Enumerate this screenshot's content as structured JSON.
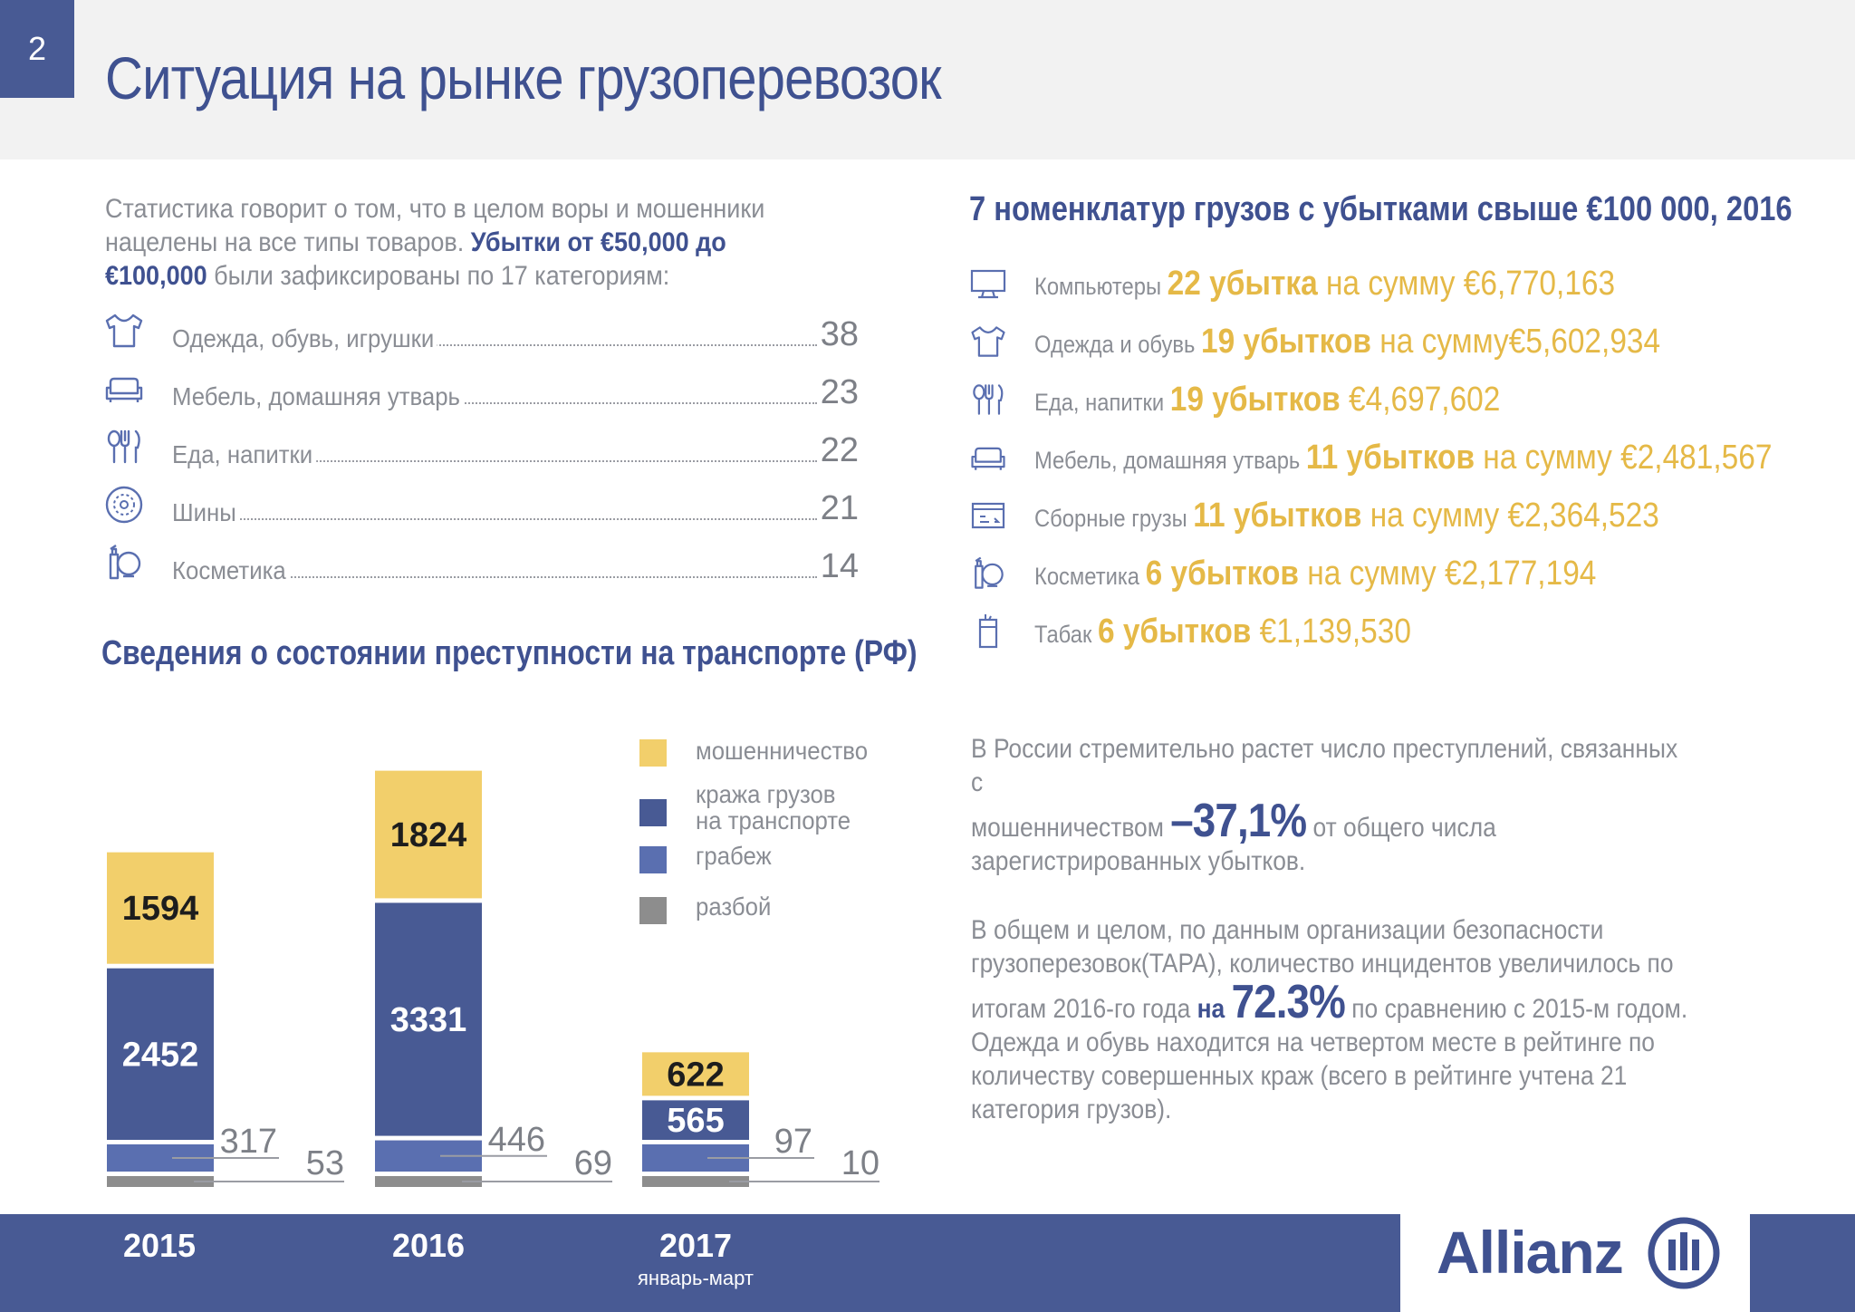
{
  "header": {
    "page_number": "2",
    "title": "Ситуация на рынке грузоперевозок"
  },
  "intro": {
    "text_plain": "Статистика говорит о том, что в целом воры и мошенники нацелены на все типы товаров. ",
    "text_bold": "Убытки от €50,000 до €100,000",
    "text_end": " были зафиксированы по 17 категориям:"
  },
  "categories": [
    {
      "icon": "tshirt-icon",
      "label": "Одежда, обувь, игрушки",
      "value": "38"
    },
    {
      "icon": "sofa-icon",
      "label": "Мебель, домашняя утварь",
      "value": "23"
    },
    {
      "icon": "cutlery-icon",
      "label": "Еда, напитки",
      "value": "22"
    },
    {
      "icon": "tire-icon",
      "label": "Шины",
      "value": "21"
    },
    {
      "icon": "cosmetics-icon",
      "label": "Косметика",
      "value": "14"
    }
  ],
  "crime_section": {
    "title": "Сведения о состоянии преступности на транспорте (РФ)"
  },
  "colors": {
    "fraud": "#f2cf6b",
    "theft": "#485a94",
    "robbery": "#5a6fb0",
    "assault": "#8d8d8d",
    "brand": "#3f5190",
    "gold": "#e5b947"
  },
  "chart_data": {
    "type": "bar",
    "stacked": true,
    "categories": [
      "2015",
      "2016",
      "2017"
    ],
    "category_sublabels": [
      "",
      "",
      "январь-март"
    ],
    "series": [
      {
        "name": "разбой",
        "values": [
          53,
          69,
          10
        ]
      },
      {
        "name": "грабеж",
        "values": [
          317,
          446,
          97
        ]
      },
      {
        "name": "кража грузов на транспорте",
        "values": [
          2452,
          3331,
          565
        ]
      },
      {
        "name": "мошенничество",
        "values": [
          1594,
          1824,
          622
        ]
      }
    ],
    "legend_position": "right",
    "legend": [
      {
        "name": "мошенничество"
      },
      {
        "name": "кража грузов\nна транспорте"
      },
      {
        "name": "грабеж"
      },
      {
        "name": "разбой"
      }
    ]
  },
  "right": {
    "title": "7 номенклатур грузов с убытками свыше €100 000, 2016",
    "items": [
      {
        "icon": "monitor-icon",
        "category": "Компьютеры ",
        "count": "22 убытка",
        "sum": " на сумму €6,770,163"
      },
      {
        "icon": "tshirt-icon",
        "category": "Одежда и обувь ",
        "count": "19 убытков",
        "sum": " на сумму€5,602,934"
      },
      {
        "icon": "cutlery-icon",
        "category": "Еда, напитки ",
        "count": "19 убытков",
        "sum": " €4,697,602"
      },
      {
        "icon": "sofa-icon",
        "category": "Мебель, домашняя утварь ",
        "count": "11 убытков",
        "sum": " на сумму €2,481,567"
      },
      {
        "icon": "package-icon",
        "category": "Сборные грузы ",
        "count": "11 убытков",
        "sum": " на сумму €2,364,523"
      },
      {
        "icon": "cosmetics-icon",
        "category": "Косметика ",
        "count": "6 убытков",
        "sum": " на сумму €2,177,194"
      },
      {
        "icon": "cigarette-icon",
        "category": "Табак ",
        "count": "6 убытков",
        "sum": " €1,139,530"
      }
    ]
  },
  "para1": {
    "line1": "В России стремительно растет число преступлений, связанных с",
    "line2_start": "мошенничеством ",
    "pct": "–37,1%",
    "line2_end": " от общего числа",
    "line3": "зарегистрированных убытков."
  },
  "para2": {
    "line1": "В общем и целом, по данным организации безопасности",
    "line2": "грузоперезовок(TAPA), количество инцидентов увеличилось по",
    "line3_start": "итогам 2016-го года ",
    "na": "на ",
    "pct": "72.3%",
    "line3_end": " по сравнению с 2015-м годом.",
    "line4": "Одежда и обувь находится на четвертом месте в рейтинге по",
    "line5": "количеству совершенных краж (всего в рейтинге учтена 21",
    "line6": "категория грузов)."
  },
  "footer": {
    "logo": "Allianz"
  }
}
